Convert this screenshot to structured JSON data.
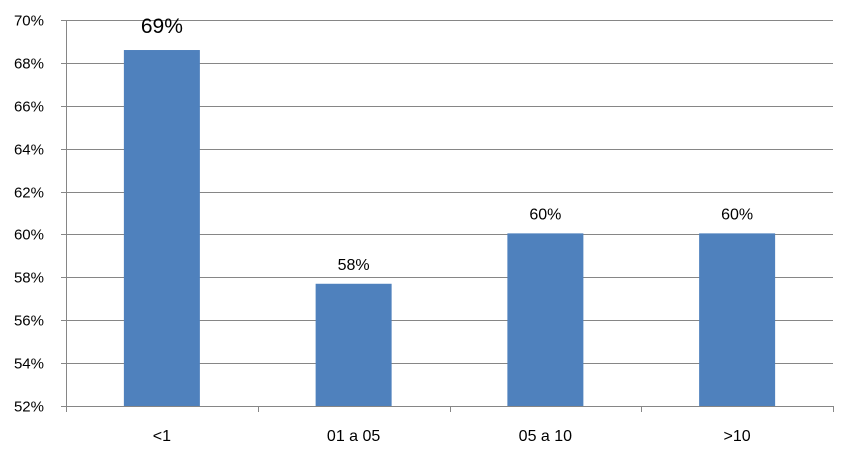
{
  "chart_data": {
    "type": "bar",
    "categories": [
      "<1",
      "01 a 05",
      "05 a 10",
      ">10"
    ],
    "values": [
      68.6,
      57.7,
      60.05,
      60.05
    ],
    "data_labels": [
      "69%",
      "58%",
      "60%",
      "60%"
    ],
    "ylim": [
      52,
      70
    ],
    "yticks": [
      52,
      54,
      56,
      58,
      60,
      62,
      64,
      66,
      68,
      70
    ],
    "ytick_labels": [
      "52%",
      "54%",
      "56%",
      "58%",
      "60%",
      "62%",
      "64%",
      "66%",
      "68%",
      "70%"
    ],
    "grid": true,
    "legend": "none",
    "colors": {
      "bar": "#4F81BD",
      "grid": "#868686",
      "axis": "#868686"
    }
  }
}
